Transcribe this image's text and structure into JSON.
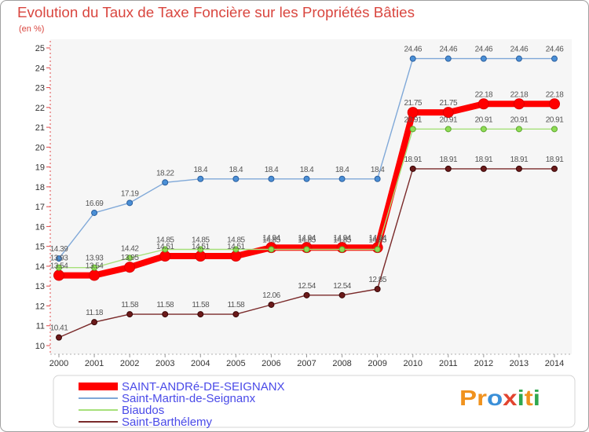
{
  "chart_data": {
    "type": "line",
    "title": "Evolution du Taux de Taxe Foncière sur les Propriétés Bâties",
    "xlabel": "",
    "ylabel": "(en %)",
    "x": [
      2000,
      2001,
      2002,
      2003,
      2004,
      2005,
      2006,
      2007,
      2008,
      2009,
      2010,
      2011,
      2012,
      2013,
      2014
    ],
    "ylim": [
      10,
      25
    ],
    "yticks": [
      10,
      11,
      12,
      13,
      14,
      15,
      16,
      17,
      18,
      19,
      20,
      21,
      22,
      23,
      24,
      25
    ],
    "grid": false,
    "legend": "bottom",
    "series": [
      {
        "name": "SAINT-ANDRé-DE-SEIGNANX",
        "color": "#ff0000",
        "marker": "#ff0000",
        "marker_stroke": "#dd0000",
        "values": [
          13.54,
          13.54,
          13.95,
          14.51,
          14.51,
          14.51,
          14.94,
          14.94,
          14.94,
          14.94,
          21.75,
          21.75,
          22.18,
          22.18,
          22.18
        ]
      },
      {
        "name": "Saint-Martin-de-Seignanx",
        "color": "#7fa8d8",
        "marker": "#4a8fd6",
        "marker_stroke": "#2b5f9e",
        "values": [
          14.39,
          16.69,
          17.19,
          18.22,
          18.4,
          18.4,
          18.4,
          18.4,
          18.4,
          18.4,
          24.46,
          24.46,
          24.46,
          24.46,
          24.46
        ]
      },
      {
        "name": "Biaudos",
        "color": "#a6e07a",
        "marker": "#8fdc55",
        "marker_stroke": "#5fa830",
        "values": [
          13.93,
          13.93,
          14.42,
          14.85,
          14.85,
          14.85,
          14.85,
          14.85,
          14.85,
          14.85,
          20.91,
          20.91,
          20.91,
          20.91,
          20.91
        ]
      },
      {
        "name": "Saint-Barthélemy",
        "color": "#7a2a2a",
        "marker": "#6b1a1a",
        "marker_stroke": "#3a0808",
        "values": [
          10.41,
          11.18,
          11.58,
          11.58,
          11.58,
          11.58,
          12.06,
          12.54,
          12.54,
          12.85,
          18.91,
          18.91,
          18.91,
          18.91,
          18.91
        ]
      }
    ]
  },
  "logo": {
    "text": "Proxiti",
    "letter_colors": [
      "#f0921e",
      "#f0921e",
      "#3a8fd8",
      "#e2442f",
      "#2fa84f",
      "#f0921e",
      "#2fa84f"
    ]
  }
}
